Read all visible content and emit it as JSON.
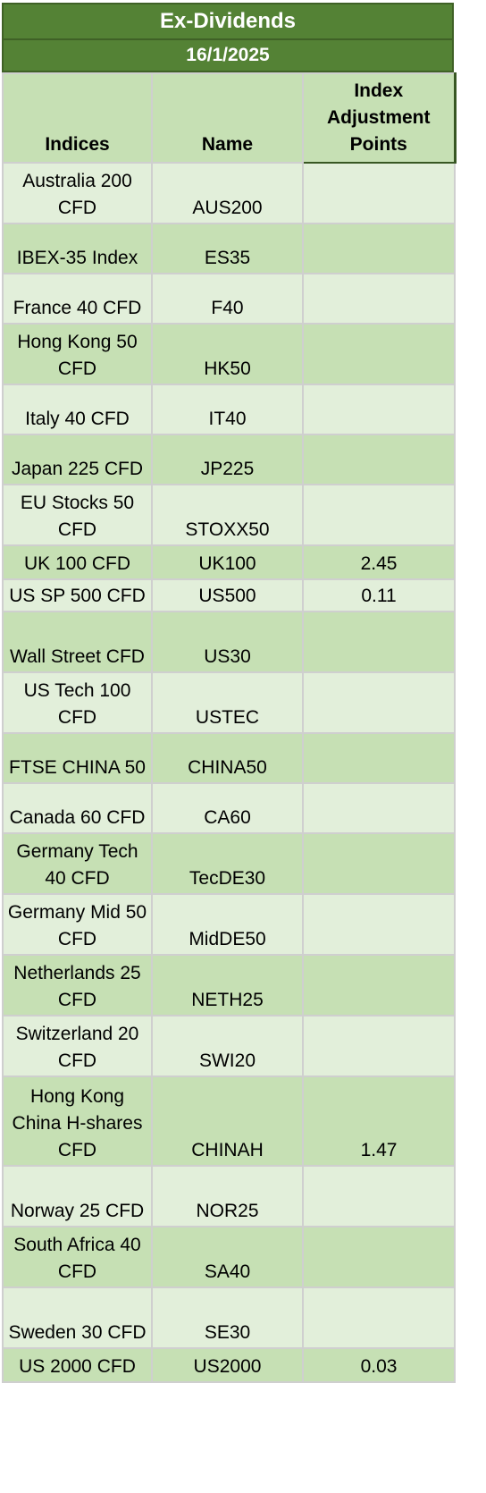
{
  "title": "Ex-Dividends",
  "date": "16/1/2025",
  "headers": {
    "indices": "Indices",
    "name": "Name",
    "adjustment": "Index Adjustment Points"
  },
  "rows": [
    {
      "indices": "Australia 200 CFD",
      "name": "AUS200",
      "points": ""
    },
    {
      "indices": "IBEX-35 Index",
      "name": "ES35",
      "points": ""
    },
    {
      "indices": "France 40 CFD",
      "name": "F40",
      "points": ""
    },
    {
      "indices": "Hong Kong 50 CFD",
      "name": "HK50",
      "points": ""
    },
    {
      "indices": "Italy 40 CFD",
      "name": "IT40",
      "points": ""
    },
    {
      "indices": "Japan 225 CFD",
      "name": "JP225",
      "points": ""
    },
    {
      "indices": "EU Stocks 50 CFD",
      "name": "STOXX50",
      "points": ""
    },
    {
      "indices": "UK 100 CFD",
      "name": "UK100",
      "points": "2.45"
    },
    {
      "indices": "US SP 500 CFD",
      "name": "US500",
      "points": "0.11"
    },
    {
      "indices": "Wall Street CFD",
      "name": "US30",
      "points": ""
    },
    {
      "indices": "US Tech 100 CFD",
      "name": "USTEC",
      "points": ""
    },
    {
      "indices": "FTSE CHINA 50",
      "name": "CHINA50",
      "points": ""
    },
    {
      "indices": "Canada 60 CFD",
      "name": "CA60",
      "points": ""
    },
    {
      "indices": "Germany Tech 40 CFD",
      "name": "TecDE30",
      "points": ""
    },
    {
      "indices": "Germany Mid 50 CFD",
      "name": "MidDE50",
      "points": ""
    },
    {
      "indices": "Netherlands 25 CFD",
      "name": "NETH25",
      "points": ""
    },
    {
      "indices": "Switzerland 20 CFD",
      "name": "SWI20",
      "points": ""
    },
    {
      "indices": "Hong Kong China H-shares CFD",
      "name": "CHINAH",
      "points": "1.47"
    },
    {
      "indices": "Norway 25 CFD",
      "name": "NOR25",
      "points": ""
    },
    {
      "indices": "South Africa 40 CFD",
      "name": "SA40",
      "points": ""
    },
    {
      "indices": "Sweden 30 CFD",
      "name": "SE30",
      "points": ""
    },
    {
      "indices": "US 2000 CFD",
      "name": "US2000",
      "points": "0.03"
    }
  ]
}
